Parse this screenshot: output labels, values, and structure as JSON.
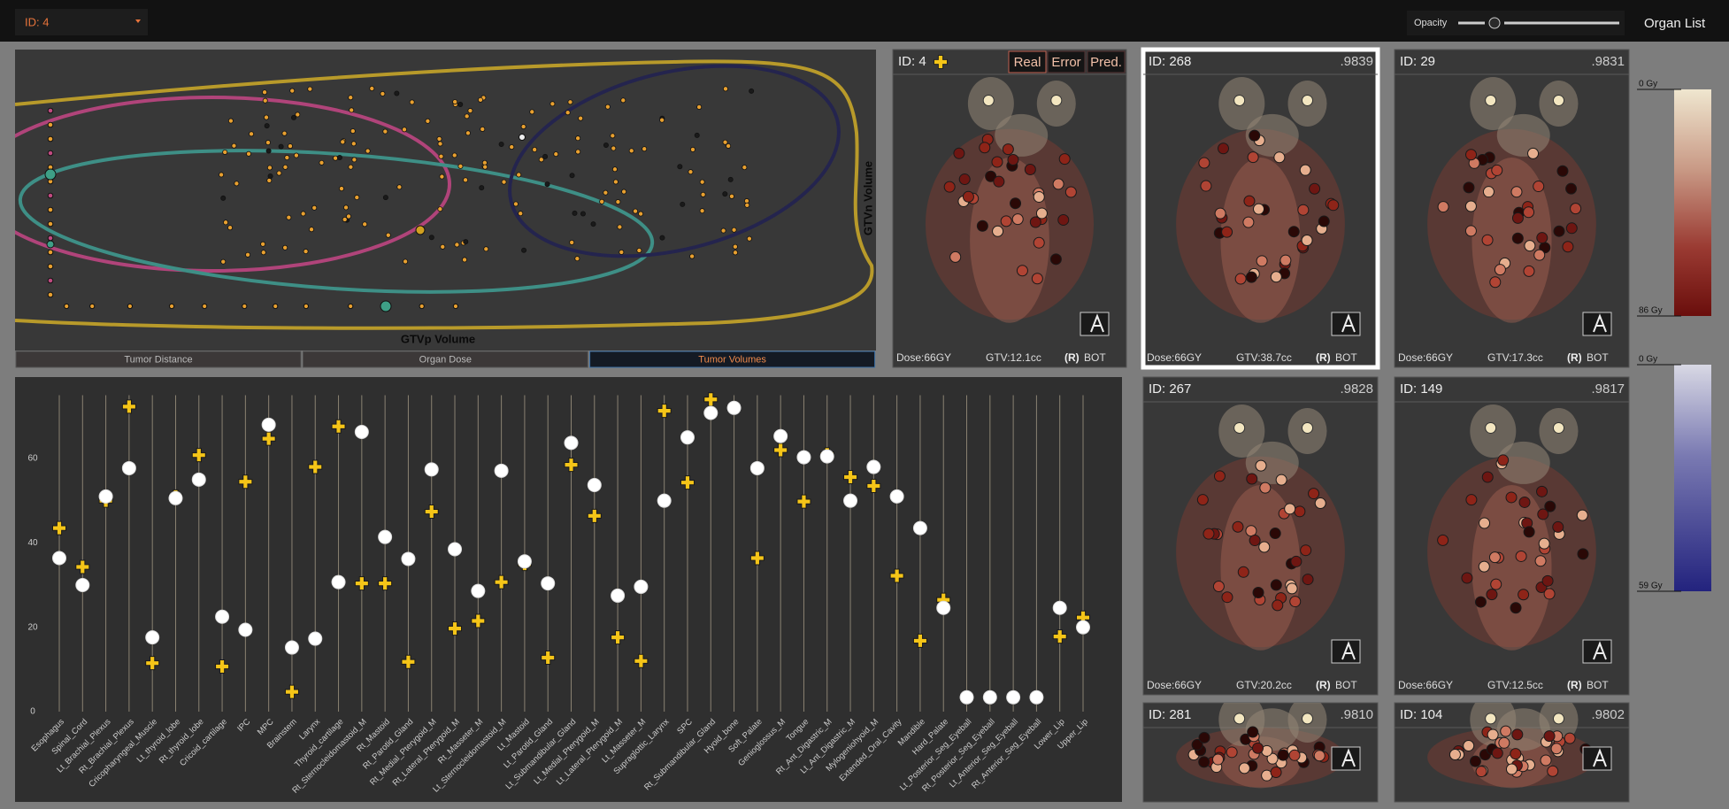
{
  "toolbar": {
    "patient_select": "ID: 4",
    "opacity_label": "Opacity",
    "organ_list": "Organ List"
  },
  "scatter_panel": {
    "x_label": "GTVp Volume",
    "y_label": "GTVn Volume",
    "tabs": [
      "Tumor Distance",
      "Organ Dose",
      "Tumor Volumes"
    ]
  },
  "chart_data": {
    "type": "strip",
    "categories": [
      "Esophagus",
      "Spinal_Cord",
      "Lt_Brachial_Plexus",
      "Rt_Brachial_Plexus",
      "Cricopharyngeal_Muscle",
      "Lt_thyroid_lobe",
      "Rt_thyroid_lobe",
      "Cricoid_cartilage",
      "IPC",
      "MPC",
      "Brainstem",
      "Larynx",
      "Thyroid_cartilage",
      "Rt_Sternocleidomastoid_M",
      "Rt_Mastoid",
      "Rt_Parotid_Gland",
      "Rt_Medial_Pterygoid_M",
      "Rt_Lateral_Pterygoid_M",
      "Rt_Masseter_M",
      "Lt_Sternocleidomastoid_M",
      "Lt_Mastoid",
      "Lt_Parotid_Gland",
      "Lt_Submandibular_Gland",
      "Lt_Medial_Pterygoid_M",
      "Lt_Lateral_Pterygoid_M",
      "Lt_Masseter_M",
      "Supraglottic_Larynx",
      "SPC",
      "Rt_Submandibular_Gland",
      "Hyoid_bone",
      "Soft_Palate",
      "Genioglossus_M",
      "Tongue",
      "Rt_Ant_Digastric_M",
      "Lt_Ant_Digastric_M",
      "Mylogeniohyoid_M",
      "Extended_Oral_Cavity",
      "Mandible",
      "Hard_Palate",
      "Lt_Posterior_Seg_Eyeball",
      "Rt_Posterior_Seg_Eyeball",
      "Lt_Anterior_Seg_Eyeball",
      "Rt_Anterior_Seg_Eyeball",
      "Lower_Lip",
      "Upper_Lip"
    ],
    "series": [
      {
        "color": "#f5c518",
        "marker": "plus",
        "values": [
          43.5,
          34.3,
          50,
          72.3,
          11.5,
          51,
          60.8,
          10.7,
          54.5,
          64.7,
          4.7,
          58,
          67.6,
          30.4,
          30.4,
          11.8,
          47.4,
          19.7,
          21.5,
          30.7,
          35,
          12.8,
          58.5,
          46.4,
          17.6,
          12,
          71.3,
          54.3,
          74,
          72,
          36.4,
          62,
          49.8,
          61,
          55.6,
          53.5,
          32.2,
          16.8,
          26.5,
          3.4,
          3.4,
          3.4,
          3.4,
          17.8,
          22.3
        ]
      },
      {
        "color": "#ffffff",
        "marker": "circle",
        "values": [
          36.4,
          30,
          51,
          57.7,
          17.6,
          50.6,
          55,
          22.5,
          19.4,
          68,
          15.2,
          17.3,
          30.7,
          66.3,
          41.4,
          36.2,
          57.4,
          38.5,
          28.6,
          57.1,
          35.6,
          30.4,
          63.7,
          53.7,
          27.5,
          29.6,
          50,
          65,
          70.8,
          72,
          57.7,
          65.3,
          60.3,
          60.5,
          50,
          58,
          51,
          43.5,
          24.6,
          3.4,
          3.4,
          3.4,
          3.4,
          24.6,
          20
        ]
      }
    ],
    "ylim": [
      0,
      75
    ],
    "yticks": [
      0,
      20,
      40,
      60
    ]
  },
  "query_card": {
    "id": "ID: 4",
    "tabs": [
      "Real",
      "Error",
      "Pred."
    ],
    "dose": "Dose:66GY",
    "gtv": "GTV:12.1cc",
    "side": "(R)",
    "site": "BOT"
  },
  "cards": [
    {
      "id": "ID: 268",
      "score": ".9839",
      "dose": "Dose:66GY",
      "gtv": "GTV:38.7cc",
      "side": "(R)",
      "site": "BOT"
    },
    {
      "id": "ID: 29",
      "score": ".9831",
      "dose": "Dose:66GY",
      "gtv": "GTV:17.3cc",
      "side": "(R)",
      "site": "BOT"
    },
    {
      "id": "ID: 267",
      "score": ".9828",
      "dose": "Dose:66GY",
      "gtv": "GTV:20.2cc",
      "side": "(R)",
      "site": "BOT"
    },
    {
      "id": "ID: 149",
      "score": ".9817",
      "dose": "Dose:66GY",
      "gtv": "GTV:12.5cc",
      "side": "(R)",
      "site": "BOT"
    },
    {
      "id": "ID: 281",
      "score": ".9810"
    },
    {
      "id": "ID: 104",
      "score": ".9802"
    }
  ],
  "colorbars": [
    {
      "min": "0 Gy",
      "max": "86 Gy"
    },
    {
      "min": "0 Gy",
      "max": "59 Gy"
    }
  ]
}
